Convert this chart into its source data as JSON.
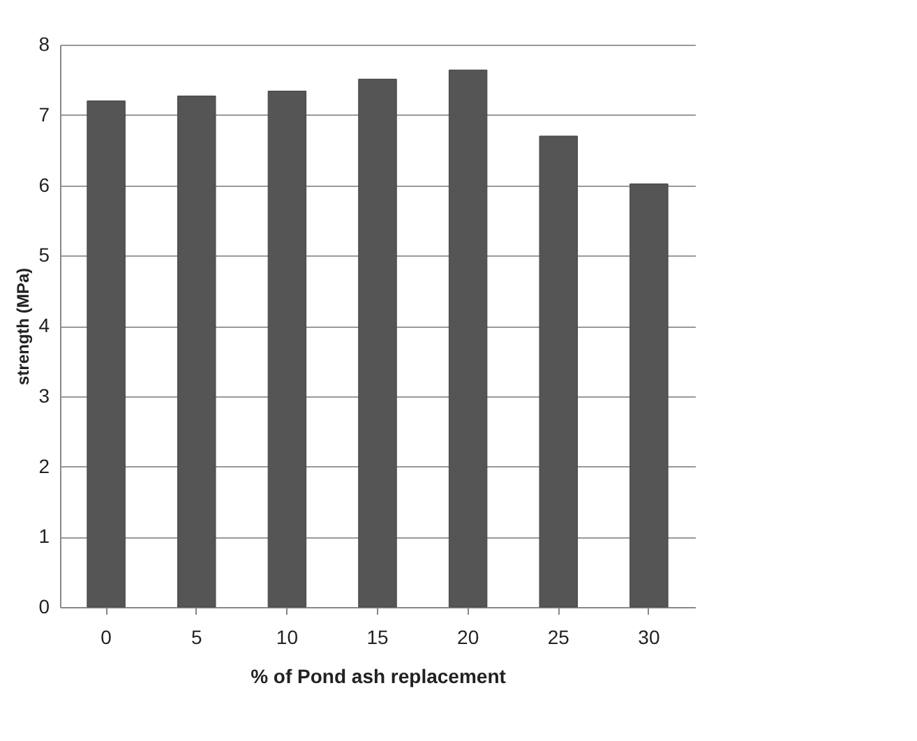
{
  "chart_data": {
    "type": "bar",
    "xlabel": "% of Pond ash replacement",
    "ylabel": "strength (MPa)",
    "categories": [
      "0",
      "5",
      "10",
      "15",
      "20",
      "25",
      "30"
    ],
    "series": [
      {
        "color": "#555555",
        "values": [
          7.2,
          7.27,
          7.34,
          7.51,
          7.64,
          6.7,
          6.02
        ]
      }
    ],
    "ylim": [
      0,
      8
    ],
    "yticks": [
      0,
      1,
      2,
      3,
      4,
      5,
      6,
      7,
      8
    ],
    "grid": "y"
  }
}
